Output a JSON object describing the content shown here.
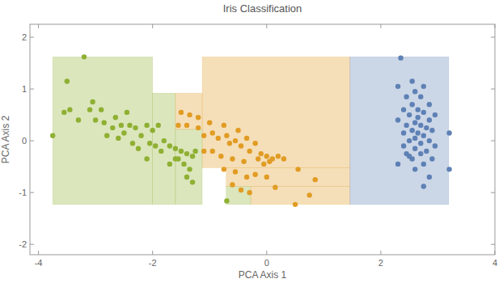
{
  "chart_data": {
    "type": "scatter",
    "title": "Iris Classification",
    "x_label": "PCA Axis 1",
    "y_label": "PCA Axis 2",
    "xlim": [
      -4.15,
      4.0
    ],
    "ylim": [
      -2.2,
      2.25
    ],
    "xticks": [
      -4,
      -2,
      0,
      2,
      4
    ],
    "yticks": [
      -2,
      -1,
      0,
      1,
      2
    ],
    "regions": [
      {
        "color": "#8fb032",
        "x": [
          -3.75,
          -2.0
        ],
        "y": [
          -1.23,
          1.62
        ]
      },
      {
        "color": "#8fb032",
        "x": [
          -2.0,
          -1.6
        ],
        "y": [
          -1.23,
          0.92
        ]
      },
      {
        "color": "#8fb032",
        "x": [
          -1.6,
          -1.13
        ],
        "y": [
          -1.23,
          0.22
        ]
      },
      {
        "color": "#8fb032",
        "x": [
          -0.71,
          -0.28
        ],
        "y": [
          -1.23,
          -0.88
        ]
      },
      {
        "color": "#e19c24",
        "x": [
          -1.6,
          -1.13
        ],
        "y": [
          0.22,
          0.92
        ]
      },
      {
        "color": "#e19c24",
        "x": [
          -1.13,
          1.46
        ],
        "y": [
          -0.52,
          1.62
        ]
      },
      {
        "color": "#e19c24",
        "x": [
          -0.71,
          1.46
        ],
        "y": [
          -0.88,
          -0.52
        ]
      },
      {
        "color": "#e19c24",
        "x": [
          -0.28,
          1.46
        ],
        "y": [
          -1.23,
          -0.88
        ]
      },
      {
        "color": "#5e81b5",
        "x": [
          1.46,
          3.19
        ],
        "y": [
          -1.23,
          1.62
        ]
      }
    ],
    "series": [
      {
        "color": "#8fb032",
        "marker": "circle",
        "x": [
          -3.75,
          -3.5,
          -3.2,
          -3.55,
          -3.45,
          -3.3,
          -3.05,
          -2.9,
          -3.1,
          -3.0,
          -2.85,
          -2.65,
          -2.55,
          -2.7,
          -2.8,
          -2.6,
          -2.5,
          -2.4,
          -2.3,
          -2.2,
          -2.35,
          -2.1,
          -2.0,
          -1.9,
          -2.05,
          -2.25,
          -1.95,
          -1.8,
          -1.7,
          -1.85,
          -1.6,
          -1.5,
          -1.55,
          -1.4,
          -1.3,
          -1.45,
          -1.35,
          -1.7,
          -1.4,
          -1.3,
          -1.6,
          -2.1,
          -0.7,
          -1.25,
          -2.45
        ],
        "values": [
          0.1,
          1.15,
          1.62,
          0.55,
          0.6,
          0.4,
          0.75,
          0.6,
          0.6,
          0.4,
          0.35,
          0.45,
          0.3,
          0.25,
          0.1,
          0.05,
          0.15,
          0.3,
          0.25,
          0.1,
          -0.05,
          0.3,
          0.2,
          0.3,
          -0.05,
          -0.15,
          -0.1,
          0.0,
          -0.1,
          -0.2,
          -0.15,
          -0.2,
          -0.35,
          -0.25,
          -0.3,
          -0.45,
          -0.55,
          -0.45,
          -0.7,
          -0.8,
          -0.35,
          -0.35,
          -1.16,
          -0.2,
          0.55
        ]
      },
      {
        "color": "#e19c24",
        "marker": "circle",
        "x": [
          -1.5,
          -1.35,
          -1.2,
          -1.55,
          -1.4,
          -1.2,
          -1.0,
          -0.95,
          -1.1,
          -0.85,
          -0.75,
          -0.7,
          -0.65,
          -0.55,
          -0.45,
          -0.5,
          -0.35,
          -0.2,
          -0.1,
          -0.3,
          -0.15,
          0.0,
          0.05,
          0.1,
          -0.05,
          0.2,
          0.3,
          -0.4,
          -0.6,
          -0.8,
          -0.95,
          -0.75,
          -0.55,
          -0.35,
          -0.2,
          0.0,
          -0.6,
          -0.45,
          -0.3,
          0.15,
          0.55,
          0.85,
          0.75,
          0.5,
          -1.1
        ],
        "values": [
          0.55,
          0.5,
          0.45,
          0.3,
          0.3,
          0.25,
          0.35,
          0.15,
          0.1,
          0.05,
          0.3,
          0.1,
          -0.05,
          0.0,
          -0.1,
          0.2,
          0.05,
          -0.05,
          -0.25,
          -0.2,
          -0.35,
          -0.3,
          -0.4,
          -0.35,
          -0.45,
          -0.3,
          -0.35,
          -0.4,
          -0.35,
          -0.3,
          -0.2,
          -0.55,
          -0.6,
          -0.7,
          -0.65,
          -0.7,
          -0.85,
          -0.95,
          -1.0,
          -0.9,
          -0.55,
          -0.75,
          -1.05,
          -1.23,
          -0.2
        ]
      },
      {
        "color": "#5e81b5",
        "marker": "circle",
        "x": [
          2.35,
          2.55,
          2.3,
          2.75,
          2.6,
          2.7,
          2.45,
          2.85,
          2.55,
          2.65,
          2.4,
          2.75,
          2.95,
          2.5,
          2.65,
          2.85,
          2.3,
          2.6,
          2.7,
          2.45,
          2.8,
          2.55,
          2.65,
          2.9,
          2.4,
          2.75,
          2.6,
          2.5,
          2.85,
          2.7,
          3.2,
          2.4,
          2.95,
          2.6,
          2.8,
          2.45,
          2.7,
          2.55,
          2.9,
          2.3,
          2.75,
          2.6,
          3.2,
          2.85,
          2.75,
          2.5
        ],
        "values": [
          1.6,
          1.15,
          1.05,
          1.05,
          0.95,
          0.85,
          0.85,
          0.7,
          0.7,
          0.6,
          0.6,
          0.55,
          0.5,
          0.5,
          0.45,
          0.4,
          0.4,
          0.35,
          0.3,
          0.3,
          0.25,
          0.2,
          0.15,
          0.2,
          0.15,
          0.1,
          0.05,
          0.0,
          0.0,
          -0.05,
          0.15,
          -0.1,
          -0.1,
          -0.15,
          -0.2,
          -0.25,
          -0.25,
          -0.35,
          -0.35,
          -0.45,
          -0.45,
          -0.55,
          -0.55,
          -0.7,
          -0.88,
          -0.3
        ]
      }
    ]
  }
}
